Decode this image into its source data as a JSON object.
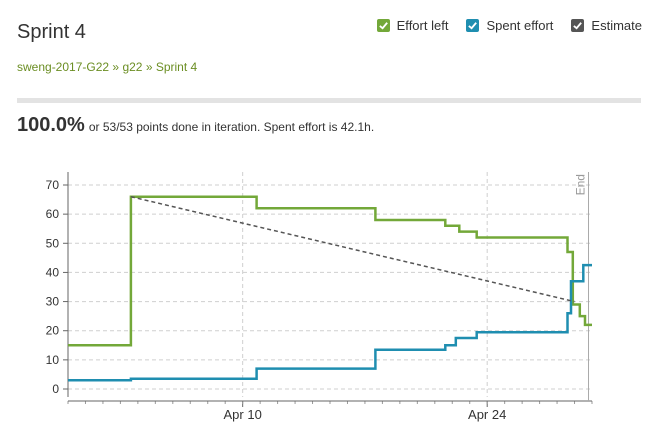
{
  "header": {
    "title": "Sprint 4",
    "breadcrumb": [
      "sweng-2017-G22",
      "g22",
      "Sprint 4"
    ],
    "separator": "»"
  },
  "legend": [
    {
      "label": "Effort left",
      "color": "#73a839",
      "checked": true
    },
    {
      "label": "Spent effort",
      "color": "#1f8eb0",
      "checked": true
    },
    {
      "label": "Estimate",
      "color": "#555555",
      "checked": true
    }
  ],
  "summary": {
    "percent": "100.0%",
    "text": "or 53/53 points done in iteration. Spent effort is 42.1h."
  },
  "chart_data": {
    "type": "line",
    "ylim": [
      0,
      70
    ],
    "yticks": [
      0,
      10,
      20,
      30,
      40,
      50,
      60,
      70
    ],
    "xticks": [
      {
        "x": 9,
        "label": "Apr 10"
      },
      {
        "x": 23,
        "label": "Apr 24"
      }
    ],
    "xlim": [
      -1,
      29
    ],
    "end_marker": {
      "x": 28.8,
      "label": "End"
    },
    "grid": true,
    "series": [
      {
        "name": "Effort left",
        "color": "#73a839",
        "step": true,
        "points": [
          [
            -1,
            15
          ],
          [
            2.6,
            15
          ],
          [
            2.6,
            66
          ],
          [
            9.8,
            66
          ],
          [
            9.8,
            62
          ],
          [
            16.6,
            62
          ],
          [
            16.6,
            58
          ],
          [
            20.6,
            58
          ],
          [
            20.6,
            56
          ],
          [
            21.4,
            56
          ],
          [
            21.4,
            54
          ],
          [
            22.4,
            54
          ],
          [
            22.4,
            52
          ],
          [
            27.6,
            52
          ],
          [
            27.6,
            47
          ],
          [
            27.9,
            47
          ],
          [
            27.9,
            29
          ],
          [
            28.3,
            29
          ],
          [
            28.3,
            25
          ],
          [
            28.6,
            25
          ],
          [
            28.6,
            22
          ],
          [
            29,
            22
          ]
        ]
      },
      {
        "name": "Spent effort",
        "color": "#1f8eb0",
        "step": true,
        "points": [
          [
            -1,
            3
          ],
          [
            2.6,
            3
          ],
          [
            2.6,
            3.5
          ],
          [
            9.8,
            3.5
          ],
          [
            9.8,
            7
          ],
          [
            16.6,
            7
          ],
          [
            16.6,
            13.5
          ],
          [
            20.6,
            13.5
          ],
          [
            20.6,
            15
          ],
          [
            21.2,
            15
          ],
          [
            21.2,
            17.5
          ],
          [
            22.4,
            17.5
          ],
          [
            22.4,
            19.5
          ],
          [
            27.6,
            19.5
          ],
          [
            27.6,
            26
          ],
          [
            27.8,
            26
          ],
          [
            27.8,
            37
          ],
          [
            28.5,
            37
          ],
          [
            28.5,
            42.5
          ],
          [
            29,
            42.5
          ]
        ]
      },
      {
        "name": "Estimate",
        "color": "#555555",
        "dashed": true,
        "step": false,
        "points": [
          [
            2.6,
            66
          ],
          [
            28,
            30
          ]
        ]
      }
    ]
  }
}
